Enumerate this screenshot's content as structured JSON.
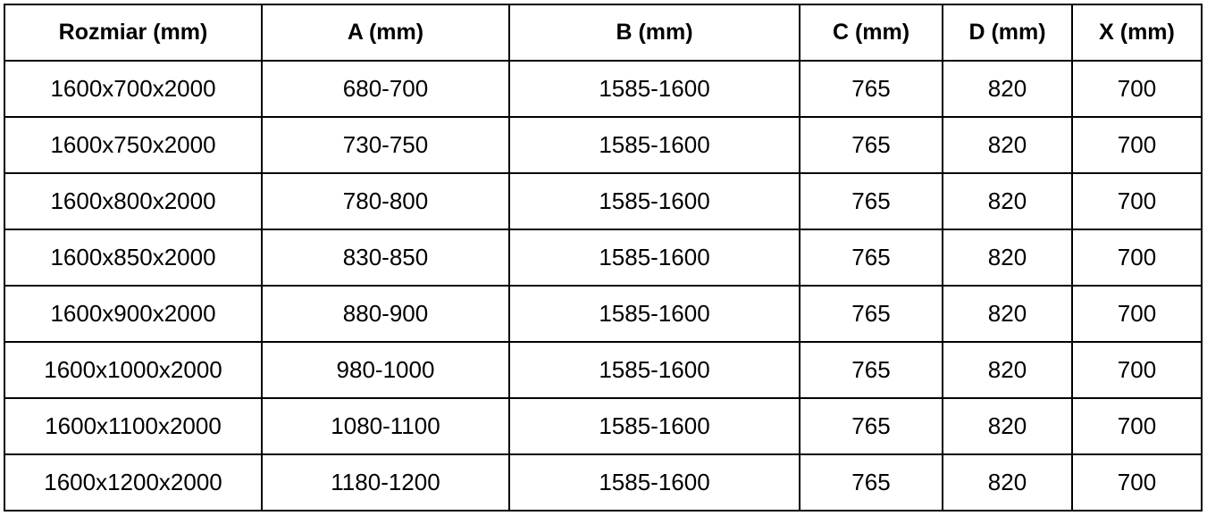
{
  "table": {
    "headers": [
      "Rozmiar (mm)",
      "A (mm)",
      "B (mm)",
      "C (mm)",
      "D (mm)",
      "X (mm)"
    ],
    "rows": [
      [
        "1600x700x2000",
        "680-700",
        "1585-1600",
        "765",
        "820",
        "700"
      ],
      [
        "1600x750x2000",
        "730-750",
        "1585-1600",
        "765",
        "820",
        "700"
      ],
      [
        "1600x800x2000",
        "780-800",
        "1585-1600",
        "765",
        "820",
        "700"
      ],
      [
        "1600x850x2000",
        "830-850",
        "1585-1600",
        "765",
        "820",
        "700"
      ],
      [
        "1600x900x2000",
        "880-900",
        "1585-1600",
        "765",
        "820",
        "700"
      ],
      [
        "1600x1000x2000",
        "980-1000",
        "1585-1600",
        "765",
        "820",
        "700"
      ],
      [
        "1600x1100x2000",
        "1080-1100",
        "1585-1600",
        "765",
        "820",
        "700"
      ],
      [
        "1600x1200x2000",
        "1180-1200",
        "1585-1600",
        "765",
        "820",
        "700"
      ]
    ]
  }
}
